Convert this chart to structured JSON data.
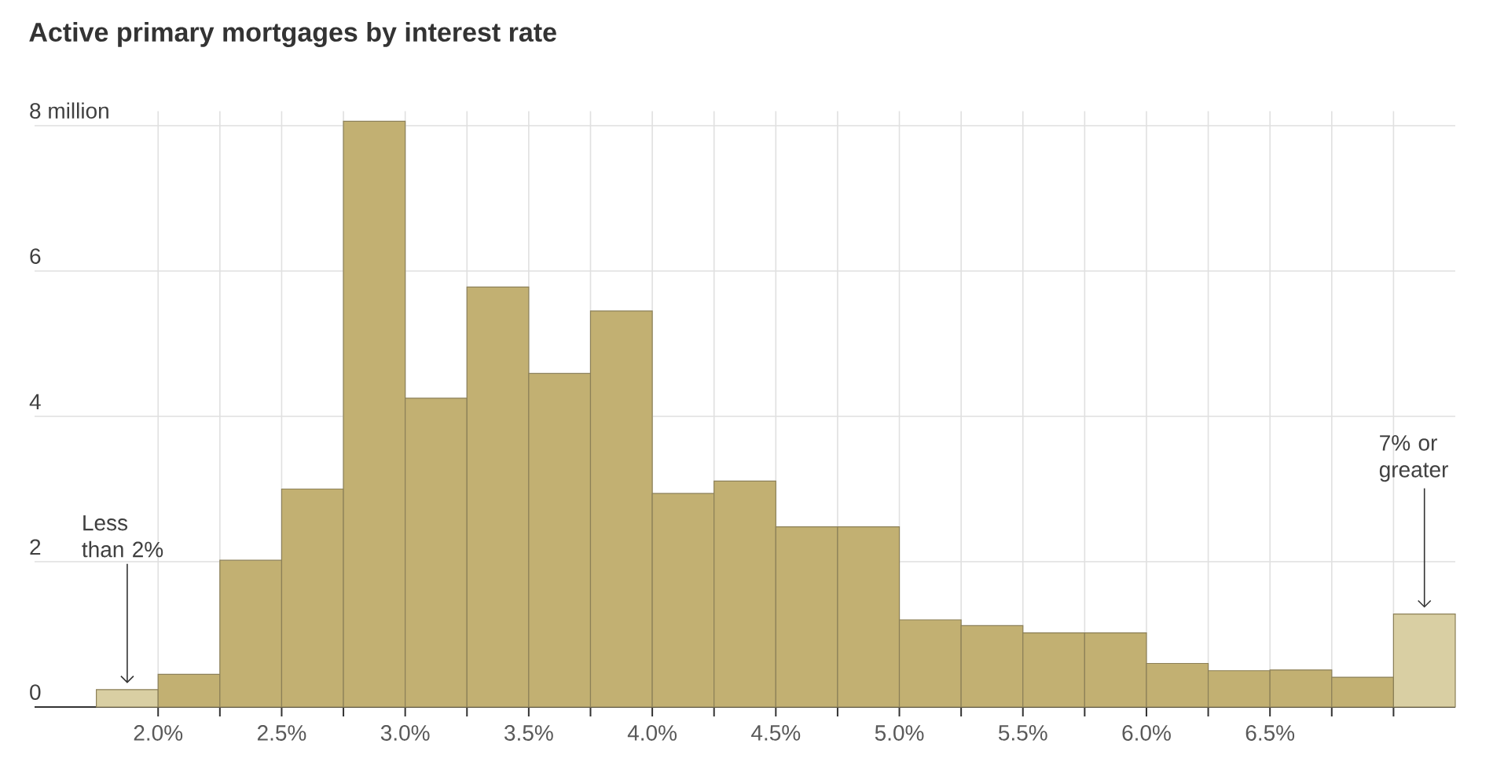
{
  "chart_data": {
    "type": "histogram",
    "title": "Active primary mortgages by interest rate",
    "bins": [
      1.75,
      2.0,
      2.25,
      2.5,
      2.75,
      3.0,
      3.25,
      3.5,
      3.75,
      4.0,
      4.25,
      4.5,
      4.75,
      5.0,
      5.25,
      5.5,
      5.75,
      6.0,
      6.25,
      6.5,
      6.75,
      7.0,
      7.25
    ],
    "values": [
      0.24,
      0.45,
      2.02,
      3.0,
      8.06,
      4.25,
      5.78,
      4.59,
      5.45,
      2.94,
      3.11,
      2.48,
      2.48,
      1.2,
      1.12,
      1.02,
      1.02,
      0.6,
      0.5,
      0.51,
      0.41,
      1.28
    ],
    "colors": [
      "#d9cfa3",
      "#c2b072",
      "#c2b072",
      "#c2b072",
      "#c2b072",
      "#c2b072",
      "#c2b072",
      "#c2b072",
      "#c2b072",
      "#c2b072",
      "#c2b072",
      "#c2b072",
      "#c2b072",
      "#c2b072",
      "#c2b072",
      "#c2b072",
      "#c2b072",
      "#c2b072",
      "#c2b072",
      "#c2b072",
      "#c2b072",
      "#d9cfa3"
    ],
    "xlim": [
      1.5,
      7.25
    ],
    "ylim": [
      0,
      8.2
    ],
    "xticks": [
      {
        "value": 2.0,
        "label": "2.0%"
      },
      {
        "value": 2.25,
        "label": null
      },
      {
        "value": 2.5,
        "label": "2.5%"
      },
      {
        "value": 2.75,
        "label": null
      },
      {
        "value": 3.0,
        "label": "3.0%"
      },
      {
        "value": 3.25,
        "label": null
      },
      {
        "value": 3.5,
        "label": "3.5%"
      },
      {
        "value": 3.75,
        "label": null
      },
      {
        "value": 4.0,
        "label": "4.0%"
      },
      {
        "value": 4.25,
        "label": null
      },
      {
        "value": 4.5,
        "label": "4.5%"
      },
      {
        "value": 4.75,
        "label": null
      },
      {
        "value": 5.0,
        "label": "5.0%"
      },
      {
        "value": 5.25,
        "label": null
      },
      {
        "value": 5.5,
        "label": "5.5%"
      },
      {
        "value": 5.75,
        "label": null
      },
      {
        "value": 6.0,
        "label": "6.0%"
      },
      {
        "value": 6.25,
        "label": null
      },
      {
        "value": 6.5,
        "label": "6.5%"
      },
      {
        "value": 6.75,
        "label": null
      },
      {
        "value": 7.0,
        "label": null
      }
    ],
    "yticks": [
      0,
      2,
      4,
      6,
      {
        "value": 8,
        "label": "8 million"
      }
    ],
    "grid": true,
    "annotations": [
      {
        "text": "Less than 2%",
        "x": 1.875,
        "y": 0.24
      },
      {
        "text": "7% or greater",
        "x": 7.125,
        "y": 1.28
      }
    ]
  }
}
